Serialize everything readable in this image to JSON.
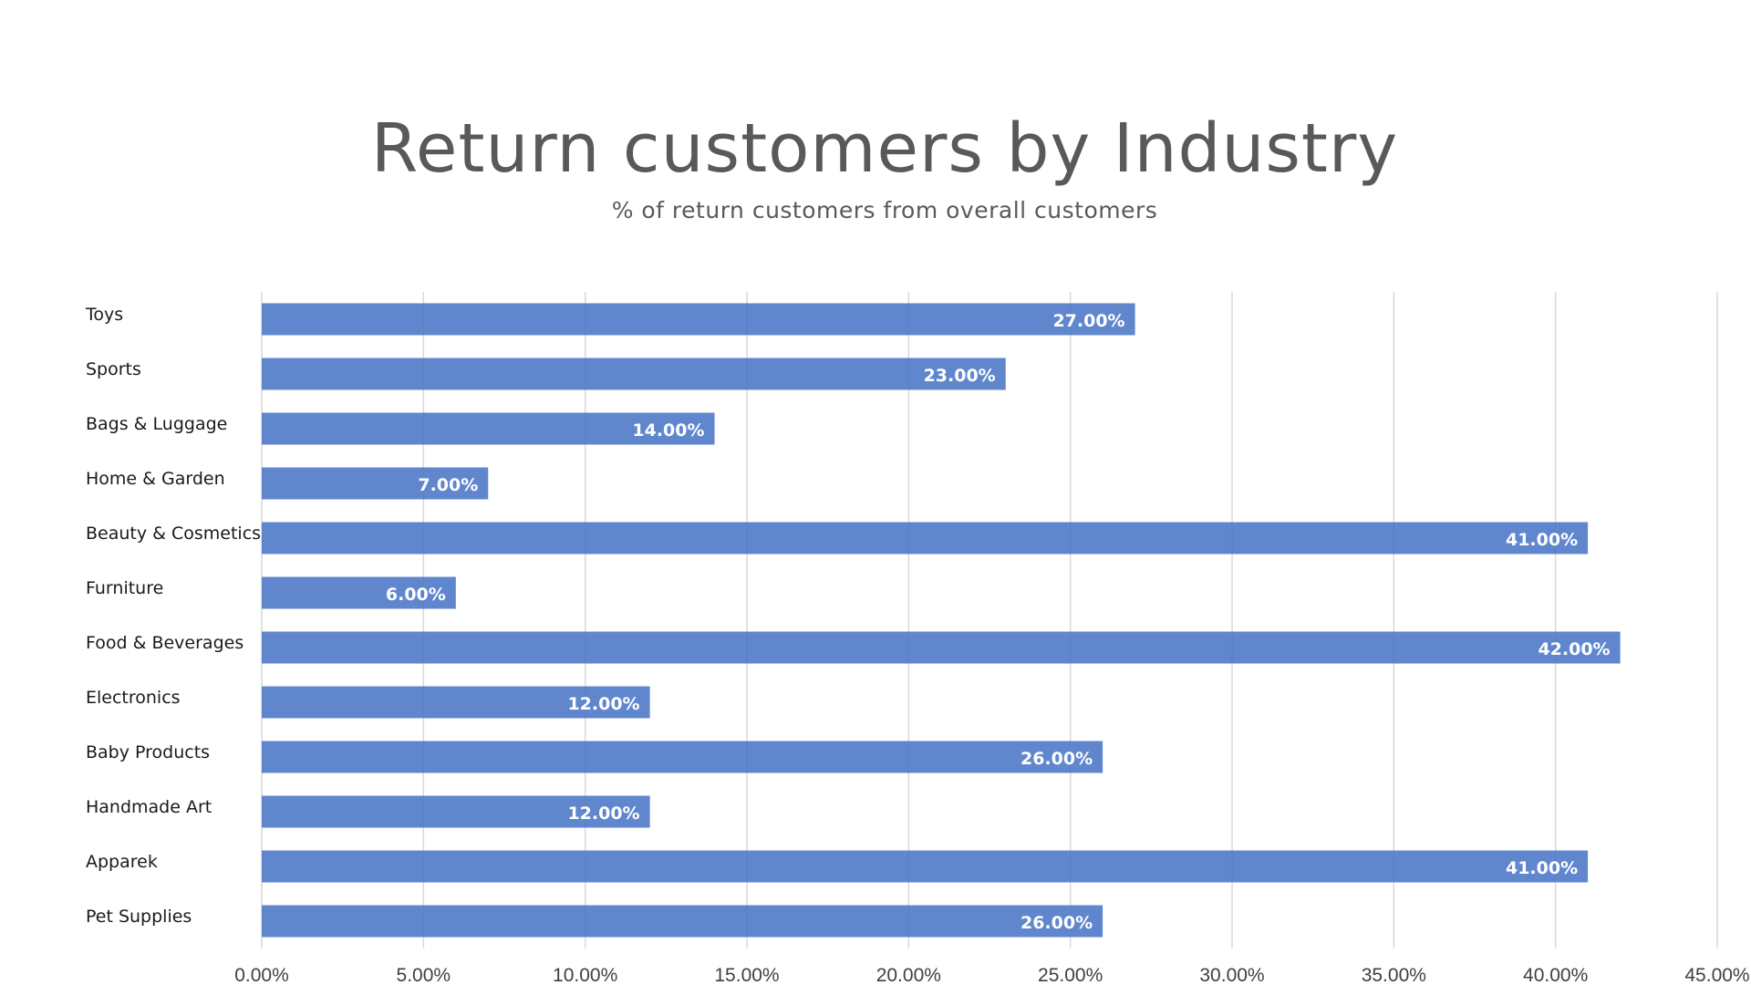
{
  "chart_data": {
    "type": "bar",
    "orientation": "horizontal",
    "title": "Return customers by Industry",
    "subtitle": "% of return customers from overall customers",
    "categories": [
      "Toys",
      "Sports",
      "Bags & Luggage",
      "Home & Garden",
      "Beauty & Cosmetics",
      "Furniture",
      "Food & Beverages",
      "Electronics",
      "Baby Products",
      "Handmade Art",
      "Apparek",
      "Pet Supplies"
    ],
    "values": [
      27,
      23,
      14,
      7,
      41,
      6,
      42,
      12,
      26,
      12,
      41,
      26
    ],
    "data_labels": [
      "27.00%",
      "23.00%",
      "14.00%",
      "7.00%",
      "41.00%",
      "6.00%",
      "42.00%",
      "12.00%",
      "26.00%",
      "12.00%",
      "41.00%",
      "26.00%"
    ],
    "x_ticks": [
      0,
      5,
      10,
      15,
      20,
      25,
      30,
      35,
      40,
      45
    ],
    "x_tick_labels": [
      "0.00%",
      "5.00%",
      "10.00%",
      "15.00%",
      "20.00%",
      "25.00%",
      "30.00%",
      "35.00%",
      "40.00%",
      "45.00%"
    ],
    "xlim": [
      0,
      45
    ],
    "xlabel": "",
    "ylabel": "",
    "grid": "vertical",
    "legend": "none",
    "bar_color": "#4472c4"
  }
}
